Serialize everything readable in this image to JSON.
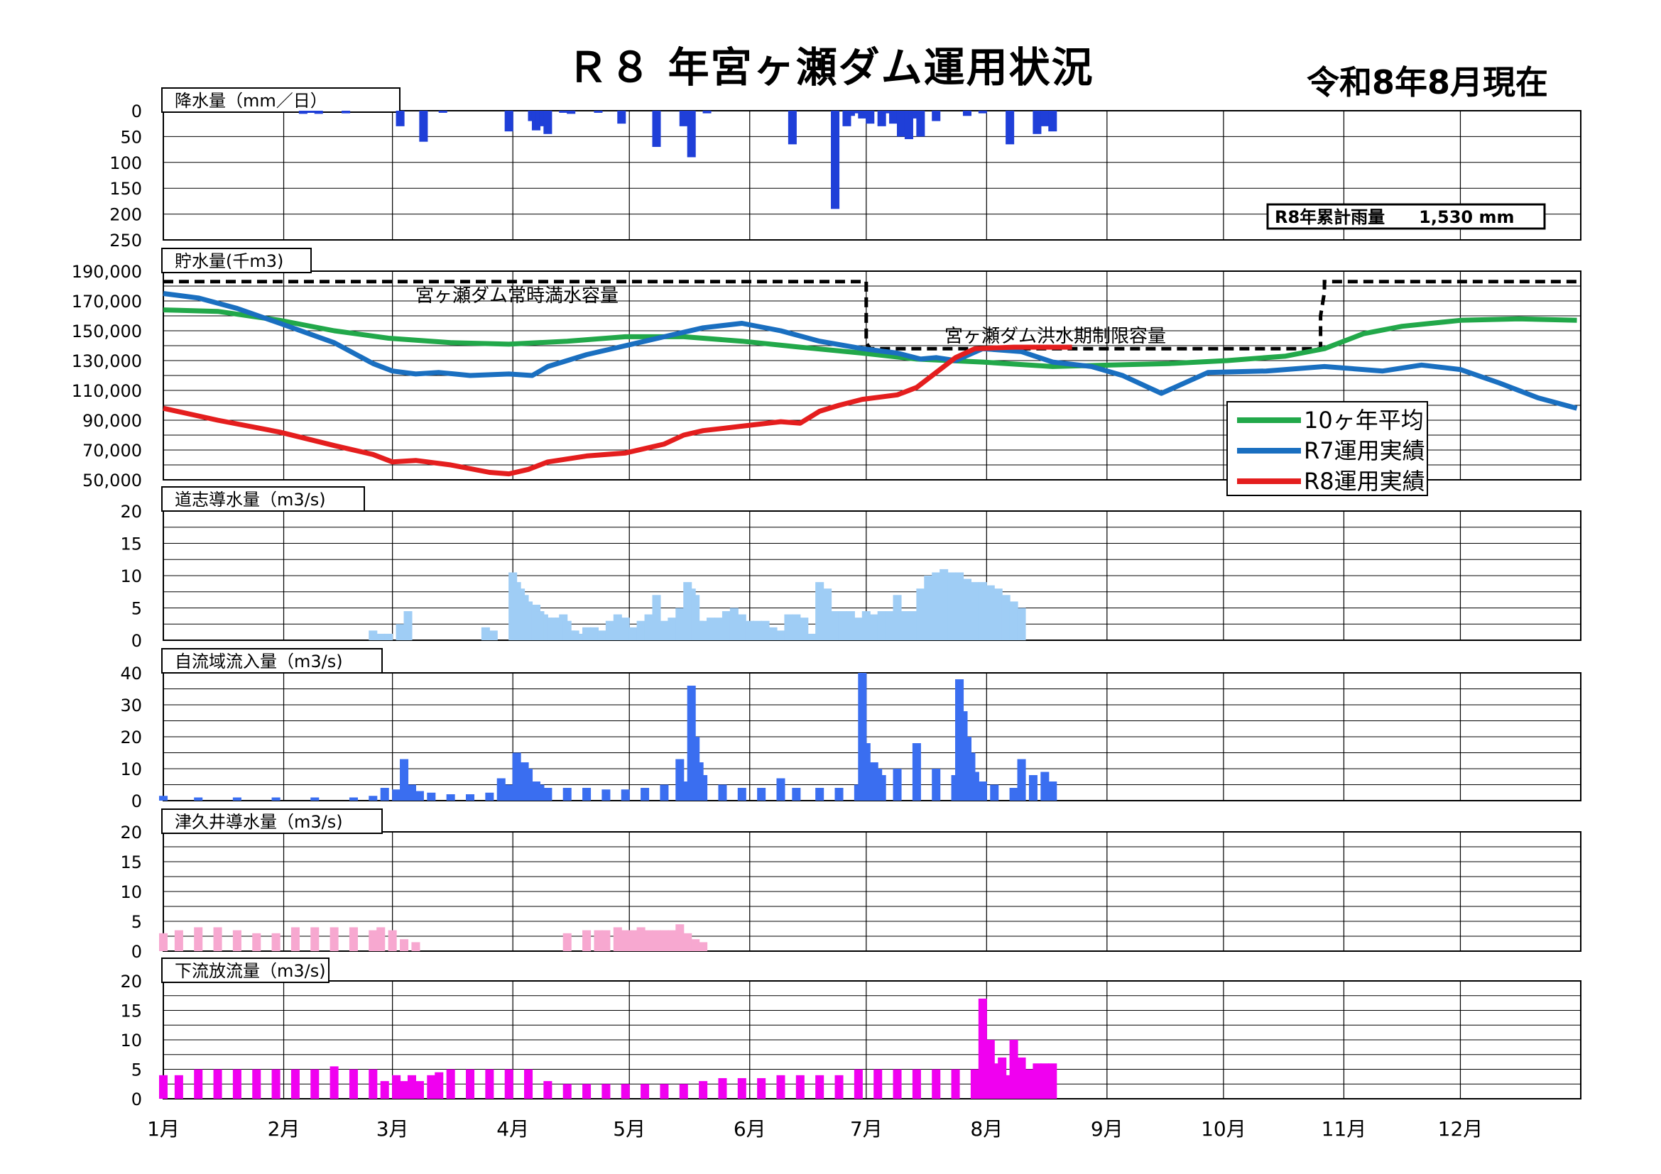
{
  "header": {
    "title": "Ｒ８ 年宮ヶ瀬ダム運用状況",
    "as_of": "令和8年8月現在"
  },
  "colors": {
    "rain": "#1f3fd8",
    "avg10": "#22a84a",
    "r7": "#1a6fc0",
    "r8": "#e41e1e",
    "doshi": "#9fcdf5",
    "self_inflow": "#3a6ef0",
    "tsukui": "#f7a8d0",
    "downstream": "#f000f0"
  },
  "x_axis": {
    "months": [
      "1月",
      "2月",
      "3月",
      "4月",
      "5月",
      "6月",
      "7月",
      "8月",
      "9月",
      "10月",
      "11月",
      "12月"
    ]
  },
  "chart_data": [
    {
      "type": "bar",
      "title": "降水量（mm／日）",
      "inverted": true,
      "ylim": [
        0,
        250
      ],
      "yticks": [
        "0",
        "50",
        "100",
        "150",
        "200",
        "250"
      ],
      "summary_box": "R8年累計雨量　　1,530 mm",
      "x_unit": "day_of_year",
      "x": [
        37,
        39,
        41,
        48,
        62,
        68,
        73,
        90,
        96,
        97,
        98,
        99,
        100,
        104,
        106,
        113,
        119,
        128,
        135,
        137,
        141,
        163,
        174,
        177,
        178,
        179,
        181,
        183,
        186,
        187,
        189,
        191,
        193,
        194,
        196,
        200,
        208,
        212,
        219,
        226,
        228,
        230
      ],
      "values": [
        6,
        4,
        6,
        5,
        30,
        60,
        4,
        40,
        20,
        38,
        30,
        25,
        45,
        4,
        6,
        4,
        25,
        70,
        30,
        90,
        5,
        65,
        190,
        30,
        10,
        5,
        15,
        25,
        30,
        5,
        25,
        50,
        55,
        15,
        50,
        20,
        10,
        5,
        65,
        45,
        30,
        40
      ]
    },
    {
      "type": "line",
      "title": "貯水量(千m3)",
      "ylim": [
        50000,
        190000
      ],
      "yticks": [
        "50,000",
        "70,000",
        "90,000",
        "110,000",
        "130,000",
        "150,000",
        "170,000",
        "190,000"
      ],
      "annotations": [
        "宮ヶ瀬ダム常時満水容量",
        "宮ヶ瀬ダム洪水期制限容量"
      ],
      "reference_lines": [
        {
          "name": "capacity",
          "x": [
            1,
            182,
            182,
            182,
            182,
            182,
            183,
            183,
            299,
            299,
            300,
            300,
            365
          ],
          "y": [
            183000,
            183000,
            176000,
            160000,
            146000,
            142000,
            138000,
            138000,
            138000,
            160000,
            176000,
            183000,
            183000
          ]
        }
      ],
      "legend": "right-lower",
      "series": [
        {
          "name": "10ヶ年平均",
          "color_key": "avg10",
          "x": [
            1,
            15,
            31,
            45,
            59,
            75,
            90,
            105,
            120,
            135,
            150,
            165,
            181,
            195,
            212,
            230,
            245,
            260,
            275,
            290,
            300,
            310,
            320,
            335,
            350,
            365
          ],
          "y": [
            164000,
            163000,
            157000,
            150000,
            145000,
            142000,
            141000,
            143000,
            146000,
            146000,
            143000,
            139000,
            135000,
            131000,
            129000,
            126000,
            127000,
            128000,
            130000,
            133000,
            138000,
            148000,
            153000,
            157000,
            158000,
            157000
          ]
        },
        {
          "name": "R7運用実績",
          "color_key": "r7",
          "x": [
            1,
            10,
            20,
            31,
            45,
            55,
            60,
            66,
            72,
            80,
            90,
            96,
            100,
            110,
            120,
            130,
            140,
            150,
            160,
            170,
            181,
            190,
            196,
            200,
            205,
            212,
            222,
            230,
            240,
            248,
            258,
            270,
            285,
            300,
            315,
            325,
            335,
            345,
            355,
            365
          ],
          "y": [
            175000,
            172000,
            165000,
            155000,
            142000,
            128000,
            123000,
            121000,
            122000,
            120000,
            121000,
            120000,
            126000,
            134000,
            140000,
            146000,
            152000,
            155000,
            150000,
            143000,
            138000,
            135000,
            131000,
            132000,
            130000,
            138000,
            136000,
            129000,
            126000,
            120000,
            108000,
            122000,
            123000,
            126000,
            123000,
            127000,
            124000,
            115000,
            105000,
            98000
          ]
        },
        {
          "name": "R8運用実績",
          "color_key": "r8",
          "x": [
            1,
            15,
            31,
            45,
            55,
            60,
            66,
            75,
            85,
            90,
            95,
            100,
            110,
            120,
            130,
            135,
            140,
            150,
            160,
            165,
            170,
            175,
            181,
            190,
            195,
            200,
            205,
            210,
            220,
            230,
            235
          ],
          "y": [
            98000,
            90000,
            82000,
            73000,
            67000,
            62000,
            63000,
            60000,
            55000,
            54000,
            57000,
            62000,
            66000,
            68000,
            74000,
            80000,
            83000,
            86000,
            89000,
            88000,
            96000,
            100000,
            104000,
            107000,
            112000,
            122000,
            132000,
            138000,
            139000,
            139000,
            139000
          ]
        }
      ]
    },
    {
      "type": "bar",
      "title": "道志導水量（m3/s)",
      "ylim": [
        0,
        20
      ],
      "yticks": [
        "0",
        "5",
        "10",
        "15",
        "20"
      ],
      "x_unit": "day_of_year",
      "x": [
        55,
        57,
        59,
        62,
        64,
        84,
        86,
        91,
        92,
        93,
        94,
        95,
        96,
        97,
        98,
        99,
        100,
        101,
        102,
        103,
        104,
        105,
        106,
        107,
        108,
        110,
        112,
        114,
        116,
        118,
        120,
        122,
        124,
        126,
        128,
        130,
        132,
        134,
        136,
        137,
        138,
        139,
        140,
        142,
        144,
        146,
        148,
        150,
        152,
        154,
        156,
        158,
        160,
        162,
        164,
        166,
        168,
        170,
        172,
        174,
        176,
        178,
        180,
        182,
        184,
        186,
        188,
        190,
        192,
        194,
        196,
        198,
        200,
        202,
        204,
        206,
        208,
        210,
        212,
        214,
        216,
        218,
        220,
        222
      ],
      "values": [
        1.5,
        1,
        1,
        2.5,
        4.5,
        2,
        1.5,
        10.5,
        9,
        8,
        7,
        6,
        5,
        5.5,
        4.5,
        4,
        3.5,
        3.5,
        3.5,
        3.5,
        4,
        3,
        1.5,
        1.5,
        1,
        2,
        2,
        1.5,
        3,
        4,
        3.5,
        2,
        3,
        4,
        7,
        3,
        3.5,
        5,
        9,
        8,
        7,
        3,
        3,
        3.5,
        3.5,
        4.5,
        5,
        4,
        3,
        3,
        3,
        2,
        1.5,
        4,
        4,
        3.5,
        1,
        9,
        8,
        4.5,
        4.5,
        4.5,
        3.5,
        4.5,
        4,
        4.5,
        4.5,
        7,
        4.5,
        4.5,
        8,
        10,
        10.5,
        11,
        10.5,
        10.5,
        9.5,
        9,
        9,
        8.5,
        8,
        7,
        6,
        5
      ]
    },
    {
      "type": "bar",
      "title": "自流域流入量（m3/s)",
      "ylim": [
        0,
        40
      ],
      "yticks": [
        "0",
        "10",
        "20",
        "30",
        "40"
      ],
      "x_unit": "day_of_year",
      "x": [
        1,
        10,
        20,
        30,
        40,
        50,
        55,
        58,
        61,
        63,
        65,
        67,
        70,
        75,
        80,
        85,
        88,
        90,
        91,
        92,
        93,
        94,
        95,
        96,
        97,
        98,
        100,
        105,
        110,
        115,
        120,
        125,
        130,
        134,
        135,
        136,
        137,
        138,
        139,
        140,
        145,
        150,
        155,
        160,
        164,
        170,
        175,
        180,
        181,
        182,
        183,
        184,
        185,
        186,
        190,
        195,
        200,
        205,
        206,
        207,
        208,
        209,
        210,
        212,
        215,
        220,
        222,
        225,
        228,
        230
      ],
      "values": [
        1.5,
        1,
        1,
        1,
        1,
        1,
        1.5,
        4,
        3.5,
        13,
        5,
        3,
        2.5,
        2,
        2,
        2.5,
        7,
        5,
        3,
        15,
        8,
        12,
        10,
        5,
        6,
        5,
        4,
        4,
        4,
        3.5,
        3.5,
        4,
        5,
        13,
        6,
        5,
        36,
        20,
        12,
        8,
        5,
        4,
        4,
        7,
        4,
        4,
        4,
        5,
        40,
        18,
        12,
        12,
        10,
        8,
        10,
        18,
        10,
        8,
        38,
        28,
        20,
        15,
        9,
        6,
        5,
        4,
        13,
        8,
        9,
        6
      ]
    },
    {
      "type": "bar",
      "title": "津久井導水量（m3/s)",
      "ylim": [
        0,
        20
      ],
      "yticks": [
        "0",
        "5",
        "10",
        "15",
        "20"
      ],
      "x_unit": "day_of_year",
      "x": [
        1,
        5,
        10,
        15,
        20,
        25,
        30,
        35,
        40,
        45,
        50,
        55,
        57,
        60,
        63,
        66,
        70,
        73,
        75,
        80,
        85,
        90,
        95,
        100,
        105,
        110,
        113,
        115,
        118,
        120,
        122,
        124,
        126,
        128,
        130,
        132,
        134,
        136,
        138,
        140
      ],
      "values": [
        3,
        3.5,
        4,
        4,
        3.5,
        3,
        3,
        4,
        4,
        4,
        4,
        3.5,
        4,
        3.5,
        2,
        1.5,
        0,
        0,
        0,
        0,
        0,
        0,
        0,
        0,
        3,
        3.5,
        3.5,
        3.5,
        4,
        3.5,
        3.5,
        4,
        3.5,
        3.5,
        3.5,
        3.5,
        4.5,
        3,
        2,
        1.5
      ]
    },
    {
      "type": "bar",
      "title": "下流放流量（m3/s)",
      "ylim": [
        0,
        20
      ],
      "yticks": [
        "0",
        "5",
        "10",
        "15",
        "20"
      ],
      "x_unit": "day_of_year",
      "x": [
        1,
        5,
        10,
        15,
        20,
        25,
        30,
        35,
        40,
        45,
        50,
        55,
        58,
        61,
        63,
        65,
        67,
        70,
        72,
        75,
        80,
        85,
        90,
        95,
        100,
        105,
        110,
        115,
        120,
        125,
        130,
        135,
        140,
        145,
        150,
        155,
        160,
        165,
        170,
        175,
        180,
        185,
        190,
        195,
        200,
        205,
        210,
        212,
        213,
        214,
        215,
        216,
        217,
        218,
        220,
        222,
        224,
        226,
        228,
        230
      ],
      "values": [
        4,
        4,
        5,
        5,
        5,
        5,
        5,
        5,
        5,
        5.5,
        5,
        5,
        3,
        4,
        3,
        4,
        3,
        4,
        4.5,
        5,
        5,
        5,
        5,
        5,
        3,
        2.5,
        2.5,
        2.5,
        2.5,
        2.5,
        2.5,
        2.5,
        3,
        3.5,
        3.5,
        3.5,
        4,
        4,
        4,
        4,
        5,
        5,
        5,
        5,
        5,
        5,
        5,
        17,
        10,
        10,
        6,
        5,
        7,
        4,
        10,
        7,
        5,
        6,
        6,
        6
      ]
    }
  ]
}
